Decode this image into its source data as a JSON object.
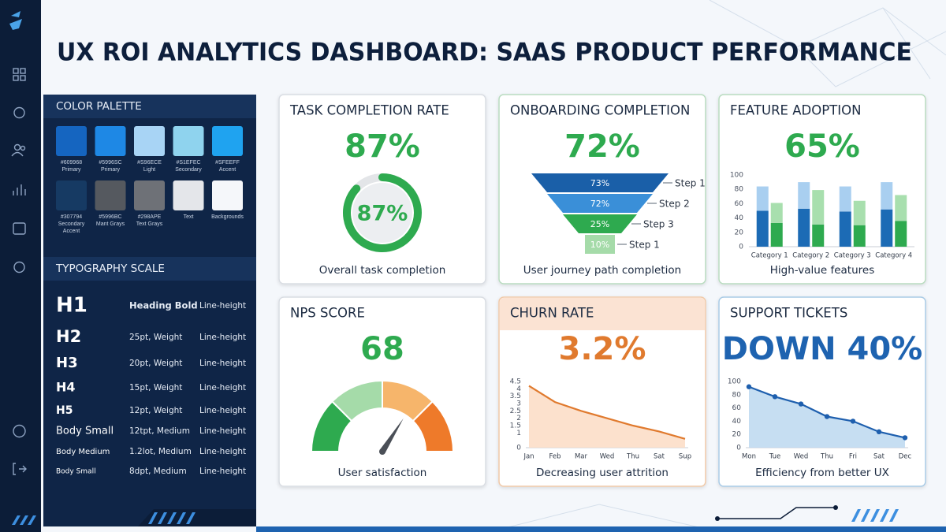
{
  "title": "UX ROI ANALYTICS DASHBOARD: SAAS PRODUCT PERFORMANCE",
  "palette": {
    "heading": "COLOR PALETTE",
    "swatches": [
      {
        "color": "#1565c0",
        "code": "#609968",
        "name": "Primary"
      },
      {
        "color": "#1e88e5",
        "code": "#5996SC",
        "name": "Primary"
      },
      {
        "color": "#a8d4f5",
        "code": "#S96ECE",
        "name": "Light"
      },
      {
        "color": "#8fd3ee",
        "code": "#S1EFEC",
        "name": "Secondary"
      },
      {
        "color": "#1fa3f0",
        "code": "#SFEEFF",
        "name": "Accent"
      },
      {
        "color": "#163a63",
        "code": "#307794",
        "name": "Secondary Accent"
      },
      {
        "color": "#55595f",
        "code": "#5996BC",
        "name": "Mant Grays"
      },
      {
        "color": "#6e7177",
        "code": "#298APE",
        "name": "Text Grays"
      },
      {
        "color": "#e4e6ea",
        "name": "Text"
      },
      {
        "color": "#f5f7fa",
        "name": "Backgrounds"
      }
    ]
  },
  "typography": {
    "heading": "TYPOGRAPHY SCALE",
    "rows": [
      {
        "style": "H1",
        "spec": "Heading Bold",
        "line": "Line-height"
      },
      {
        "style": "H2",
        "spec": "25pt, Weight",
        "line": "Line-height"
      },
      {
        "style": "H3",
        "spec": "20pt, Weight",
        "line": "Line-height"
      },
      {
        "style": "H4",
        "spec": "15pt, Weight",
        "line": "Line-height"
      },
      {
        "style": "H5",
        "spec": "12pt, Weight",
        "line": "Line-height"
      },
      {
        "style": "Body Small",
        "spec": "12tpt, Medium",
        "line": "Line-height"
      },
      {
        "style": "Body Medium",
        "spec": "1.2lot, Medium",
        "line": "Line-height"
      },
      {
        "style": "Body Small",
        "spec": "8dpt, Medium",
        "line": "Line-height"
      }
    ]
  },
  "cards": [
    {
      "title": "TASK COMPLETION RATE",
      "kpi": "87%",
      "kpi_color": "#2eaa4f",
      "caption": "Overall task completion",
      "border": "#d9dde3",
      "chart": {
        "type": "donut",
        "value": 87,
        "value_label": "87%",
        "lim": [
          0,
          100
        ],
        "color": "#2eaa4f",
        "track": "#e3e5e8"
      }
    },
    {
      "title": "ONBOARDING COMPLETION",
      "kpi": "72%",
      "kpi_color": "#2eaa4f",
      "caption": "User journey path completion",
      "border": "#b9dcc0",
      "chart": {
        "type": "funnel",
        "stages": [
          {
            "label": "73%",
            "step": "Step 1",
            "color": "#1a5fa8"
          },
          {
            "label": "72%",
            "step": "Step 2",
            "color": "#3a8fd8"
          },
          {
            "label": "25%",
            "step": "Step 3",
            "color": "#2eaa4f"
          },
          {
            "label": "10%",
            "step": "Step 1",
            "color": "#a5dba9"
          }
        ]
      }
    },
    {
      "title": "FEATURE ADOPTION",
      "kpi": "65%",
      "kpi_color": "#2eaa4f",
      "caption": "High-value features",
      "border": "#b9dcc0",
      "chart": {
        "type": "bar",
        "categories": [
          "Category 1",
          "Category 2",
          "Category 3",
          "Category 4"
        ],
        "series": [
          {
            "stack": 0,
            "color": "#1c6bb5",
            "values": [
              50,
              53,
              49,
              52
            ]
          },
          {
            "stack": 0,
            "color": "#a9cff0",
            "values": [
              34,
              37,
              35,
              38
            ]
          },
          {
            "stack": 1,
            "color": "#2eaa4f",
            "values": [
              33,
              31,
              30,
              36
            ]
          },
          {
            "stack": 1,
            "color": "#a8dfae",
            "values": [
              28,
              48,
              34,
              36
            ]
          }
        ],
        "ylim": [
          0,
          100
        ],
        "yticks": [
          0,
          20,
          40,
          60,
          80,
          100
        ]
      }
    },
    {
      "title": "NPS SCORE",
      "kpi": "68",
      "kpi_color": "#2eaa4f",
      "caption": "User satisfaction",
      "border": "#d9dde3",
      "chart": {
        "type": "gauge",
        "value": 68,
        "lim": [
          0,
          100
        ],
        "colors": [
          "#2eaa4f",
          "#a5dba9",
          "#f6b56b",
          "#ee7a2a"
        ],
        "needle": "#4a4f57"
      }
    },
    {
      "title": "CHURN RATE",
      "kpi": "3.2%",
      "kpi_color": "#e07a2e",
      "caption": "Decreasing user attrition",
      "border": "#f0c9a8",
      "header": "#fbe3d3",
      "chart": {
        "type": "line",
        "categories": [
          "Jan",
          "Feb",
          "Mar",
          "Wed",
          "Thu",
          "Sat",
          "Sup"
        ],
        "values": [
          4.2,
          3.1,
          2.5,
          2.0,
          1.5,
          1.1,
          0.6
        ],
        "color": "#e07a2e",
        "fill": "#fbdcc4",
        "markers": false,
        "ylim": [
          0,
          4.5
        ],
        "yticks": [
          0,
          1,
          1.5,
          2,
          2.5,
          3,
          3.5,
          4,
          4.5
        ]
      }
    },
    {
      "title": "SUPPORT TICKETS",
      "kpi": "DOWN 40%",
      "kpi_color": "#1e63b0",
      "caption": "Efficiency from better UX",
      "border": "#a9cbe6",
      "chart": {
        "type": "line",
        "categories": [
          "Mon",
          "Tue",
          "Wed",
          "Thu",
          "Fri",
          "Sat",
          "Dec"
        ],
        "values": [
          92,
          77,
          66,
          47,
          40,
          24,
          15
        ],
        "color": "#1e5fae",
        "fill": "#bcd8f0",
        "markers": true,
        "ylim": [
          0,
          100
        ],
        "yticks": [
          0,
          20,
          40,
          60,
          80,
          100
        ]
      }
    }
  ]
}
